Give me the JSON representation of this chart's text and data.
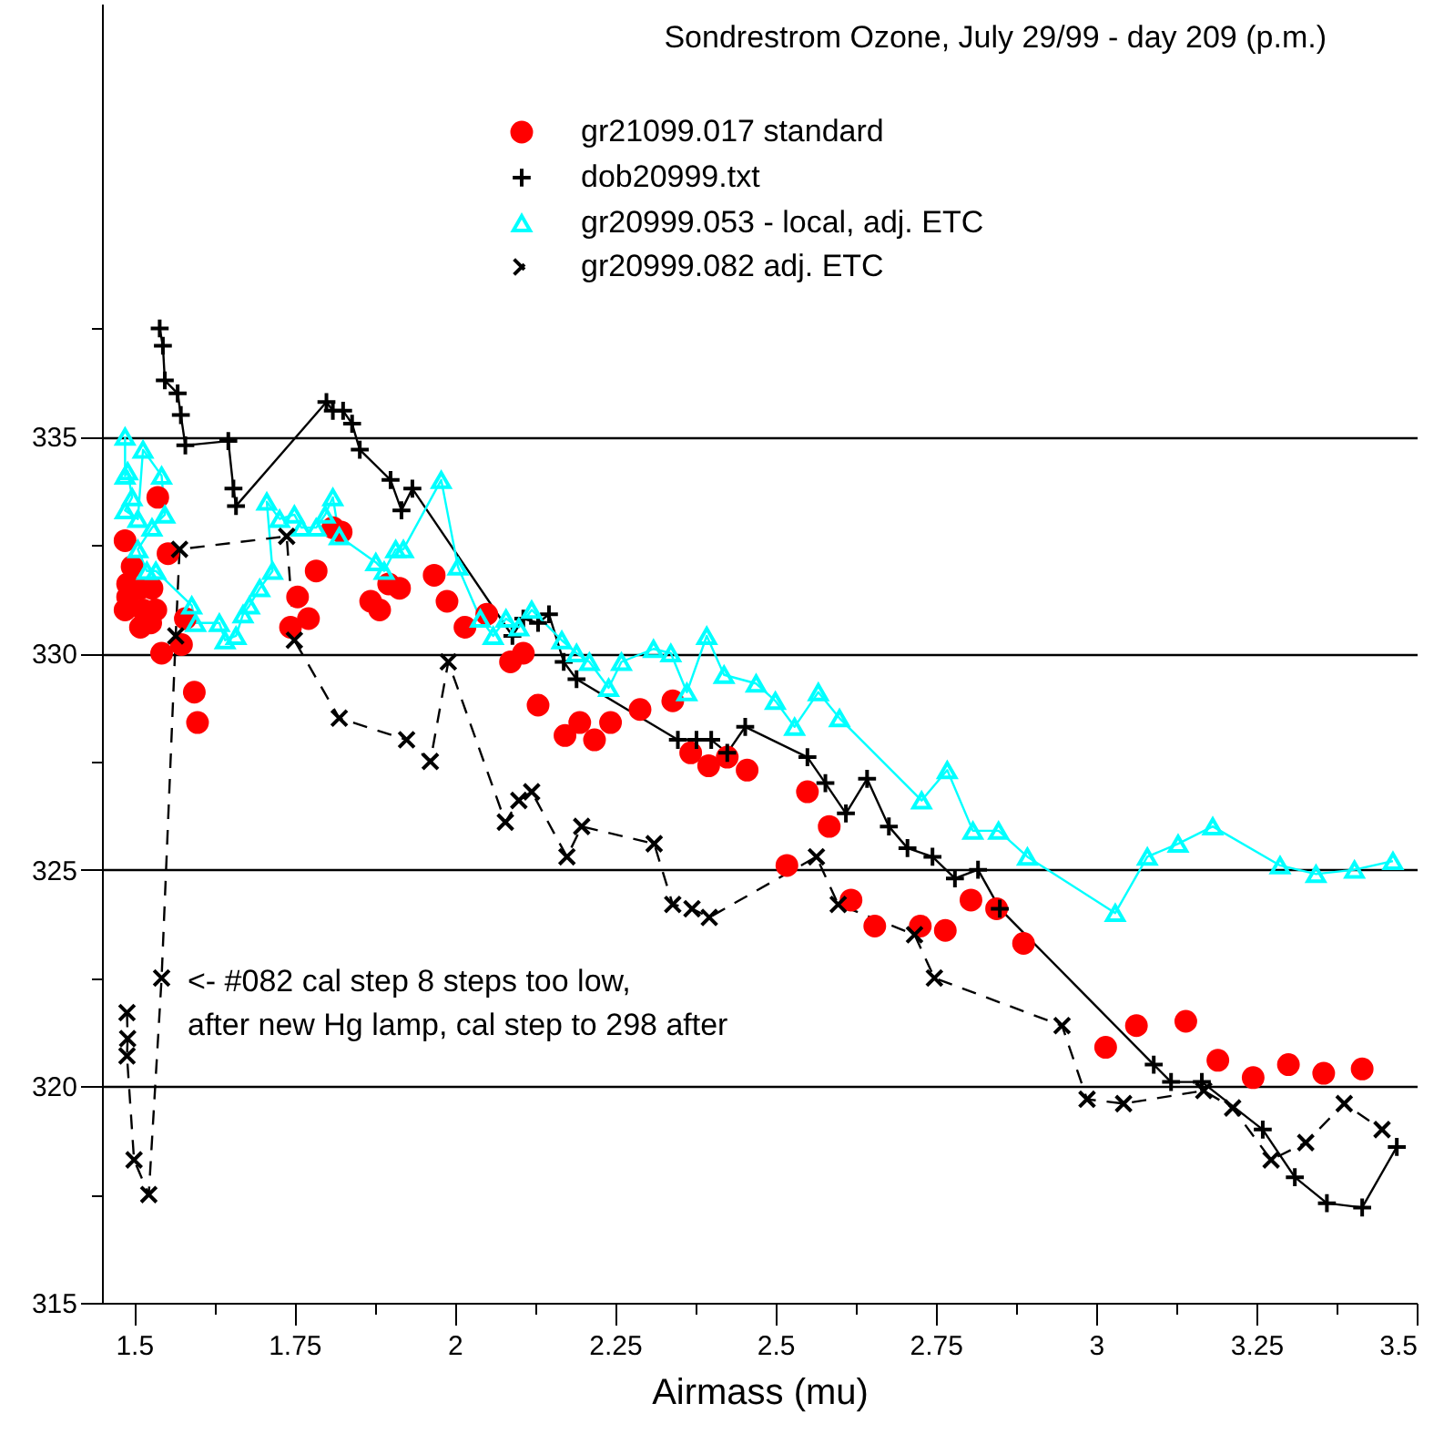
{
  "chart_data": {
    "type": "line",
    "title": "Sondrestrom Ozone, July 29/99 - day 209 (p.m.)",
    "xlabel": "Airmass (mu)",
    "annotations": [
      "<- #082 cal step 8 steps too low,\nafter new Hg lamp, cal step to 298 after"
    ],
    "xlim": [
      1.45,
      3.5
    ],
    "ylim": [
      315,
      345
    ],
    "xticks": [
      1.5,
      {
        "value": 1.625,
        "label": null
      },
      1.75,
      {
        "value": 1.875,
        "label": null
      },
      2,
      {
        "value": 2.125,
        "label": null
      },
      2.25,
      {
        "value": 2.375,
        "label": null
      },
      2.5,
      {
        "value": 2.625,
        "label": null
      },
      2.75,
      {
        "value": 2.875,
        "label": null
      },
      3,
      {
        "value": 3.125,
        "label": null
      },
      3.25,
      {
        "value": 3.375,
        "label": null
      },
      3.5
    ],
    "yticks": [
      315,
      {
        "value": 317.5,
        "label": null
      },
      320,
      {
        "value": 322.5,
        "label": null
      },
      325,
      {
        "value": 327.5,
        "label": null
      },
      330,
      {
        "value": 332.5,
        "label": null
      },
      335,
      {
        "value": 337.5,
        "label": null
      }
    ],
    "grid": "y",
    "legend": "top right",
    "series": [
      {
        "name": "gr21099.017 standard",
        "type": "scatter",
        "marker": "circle",
        "color": "#ff0000",
        "x": [
          1.537,
          1.486,
          1.497,
          1.49,
          1.51,
          1.49,
          1.528,
          1.486,
          1.514,
          1.534,
          1.51,
          1.526,
          1.543,
          1.574,
          1.58,
          1.553,
          1.594,
          1.599,
          1.755,
          1.744,
          1.772,
          1.784,
          1.81,
          1.823,
          1.869,
          1.883,
          1.897,
          1.914,
          1.968,
          1.988,
          2.016,
          2.05,
          2.087,
          2.107,
          2.13,
          2.172,
          2.195,
          2.218,
          2.243,
          2.289,
          2.34,
          2.368,
          2.396,
          2.425,
          2.456,
          2.518,
          2.55,
          2.584,
          2.618,
          2.655,
          2.726,
          2.765,
          2.805,
          2.845,
          2.887,
          3.015,
          3.063,
          3.14,
          3.19,
          3.245,
          3.3,
          3.355,
          3.415
        ],
        "values": [
          333.6,
          332.6,
          332.0,
          331.6,
          331.5,
          331.3,
          331.5,
          331.0,
          331.0,
          331.0,
          330.6,
          330.7,
          330.0,
          330.2,
          330.8,
          332.3,
          329.1,
          328.4,
          331.3,
          330.6,
          330.8,
          331.9,
          332.9,
          332.8,
          331.2,
          331.0,
          331.6,
          331.5,
          331.8,
          331.2,
          330.6,
          330.9,
          329.8,
          330.0,
          328.8,
          328.1,
          328.4,
          328.0,
          328.4,
          328.7,
          328.9,
          327.7,
          327.4,
          327.6,
          327.3,
          325.1,
          326.8,
          326.0,
          324.3,
          323.7,
          323.7,
          323.6,
          324.3,
          324.1,
          323.3,
          320.9,
          321.4,
          321.5,
          320.6,
          320.2,
          320.5,
          320.3,
          320.4
        ]
      },
      {
        "name": "dob20999.txt",
        "type": "line",
        "marker": "cross",
        "line_style": "solid",
        "color": "#000000",
        "x": [
          1.54,
          1.545,
          1.548,
          1.568,
          1.573,
          1.58,
          1.647,
          1.655,
          1.659,
          1.8,
          1.81,
          1.826,
          1.84,
          1.852,
          1.9,
          1.917,
          1.934,
          2.09,
          2.107,
          2.13,
          2.147,
          2.17,
          2.19,
          2.348,
          2.377,
          2.4,
          2.425,
          2.453,
          2.55,
          2.578,
          2.61,
          2.643,
          2.677,
          2.706,
          2.745,
          2.78,
          2.816,
          2.85,
          3.09,
          3.117,
          3.165,
          3.26,
          3.31,
          3.36,
          3.415,
          3.469
        ],
        "values": [
          337.5,
          337.1,
          336.3,
          336.0,
          335.5,
          334.8,
          334.9,
          333.8,
          333.4,
          335.8,
          335.6,
          335.6,
          335.3,
          334.7,
          334.0,
          333.3,
          333.8,
          330.4,
          330.8,
          330.7,
          330.9,
          329.8,
          329.4,
          328.0,
          328.0,
          328.0,
          327.7,
          328.3,
          327.6,
          327.0,
          326.3,
          327.1,
          326.0,
          325.5,
          325.3,
          324.8,
          325.0,
          324.1,
          320.5,
          320.1,
          320.1,
          319.0,
          317.9,
          317.3,
          317.2,
          318.6
        ]
      },
      {
        "name": "gr20999.053 - local, adj. ETC",
        "type": "line",
        "marker": "triangle",
        "line_style": "solid",
        "color": "#00ffff",
        "x": [
          1.486,
          1.486,
          1.49,
          1.497,
          1.486,
          1.506,
          1.514,
          1.543,
          1.548,
          1.528,
          1.506,
          1.52,
          1.534,
          1.59,
          1.596,
          1.633,
          1.642,
          1.659,
          1.67,
          1.68,
          1.696,
          1.716,
          1.707,
          1.727,
          1.75,
          1.761,
          1.784,
          1.798,
          1.81,
          1.82,
          1.877,
          1.89,
          1.908,
          1.92,
          1.979,
          2.005,
          2.04,
          2.06,
          2.08,
          2.1,
          2.12,
          2.167,
          2.19,
          2.21,
          2.24,
          2.26,
          2.31,
          2.337,
          2.362,
          2.393,
          2.42,
          2.47,
          2.5,
          2.53,
          2.567,
          2.6,
          2.728,
          2.768,
          2.808,
          2.848,
          2.893,
          3.03,
          3.08,
          3.128,
          3.182,
          3.287,
          3.343,
          3.403,
          3.463
        ],
        "values": [
          335.0,
          334.1,
          334.2,
          333.6,
          333.3,
          333.1,
          334.7,
          334.1,
          333.2,
          332.9,
          332.4,
          331.9,
          331.9,
          331.1,
          330.7,
          330.7,
          330.3,
          330.4,
          330.9,
          331.1,
          331.5,
          331.9,
          333.5,
          333.1,
          333.2,
          332.9,
          332.9,
          333.2,
          333.6,
          332.7,
          332.1,
          331.9,
          332.4,
          332.4,
          334.0,
          332.0,
          330.8,
          330.4,
          330.8,
          330.6,
          331.0,
          330.3,
          330.0,
          329.8,
          329.2,
          329.8,
          330.1,
          330.0,
          329.1,
          330.4,
          329.5,
          329.3,
          328.9,
          328.3,
          329.1,
          328.5,
          326.6,
          327.3,
          325.9,
          325.9,
          325.3,
          324.0,
          325.3,
          325.6,
          326.0,
          325.1,
          324.9,
          325.0,
          325.2
        ]
      },
      {
        "name": "gr20999.082 adj. ETC",
        "type": "line",
        "marker": "cross",
        "line_style": "dashed",
        "color": "#000000",
        "x": [
          1.489,
          1.49,
          1.489,
          1.5,
          1.523,
          1.543,
          1.565,
          1.571,
          1.738,
          1.75,
          1.82,
          1.925,
          1.962,
          1.99,
          2.079,
          2.1,
          2.12,
          2.175,
          2.198,
          2.311,
          2.34,
          2.37,
          2.397,
          2.564,
          2.598,
          2.717,
          2.748,
          2.947,
          2.986,
          3.043,
          3.168,
          3.213,
          3.273,
          3.327,
          3.387,
          3.446
        ],
        "values": [
          321.7,
          321.1,
          320.7,
          318.3,
          317.5,
          322.5,
          330.4,
          332.4,
          332.7,
          330.3,
          328.5,
          328.0,
          327.5,
          329.8,
          326.1,
          326.6,
          326.8,
          325.3,
          326.0,
          325.6,
          324.2,
          324.1,
          323.9,
          325.3,
          324.2,
          323.5,
          322.5,
          321.4,
          319.7,
          319.6,
          319.9,
          319.5,
          318.3,
          318.7,
          319.6,
          319.0
        ]
      }
    ]
  }
}
